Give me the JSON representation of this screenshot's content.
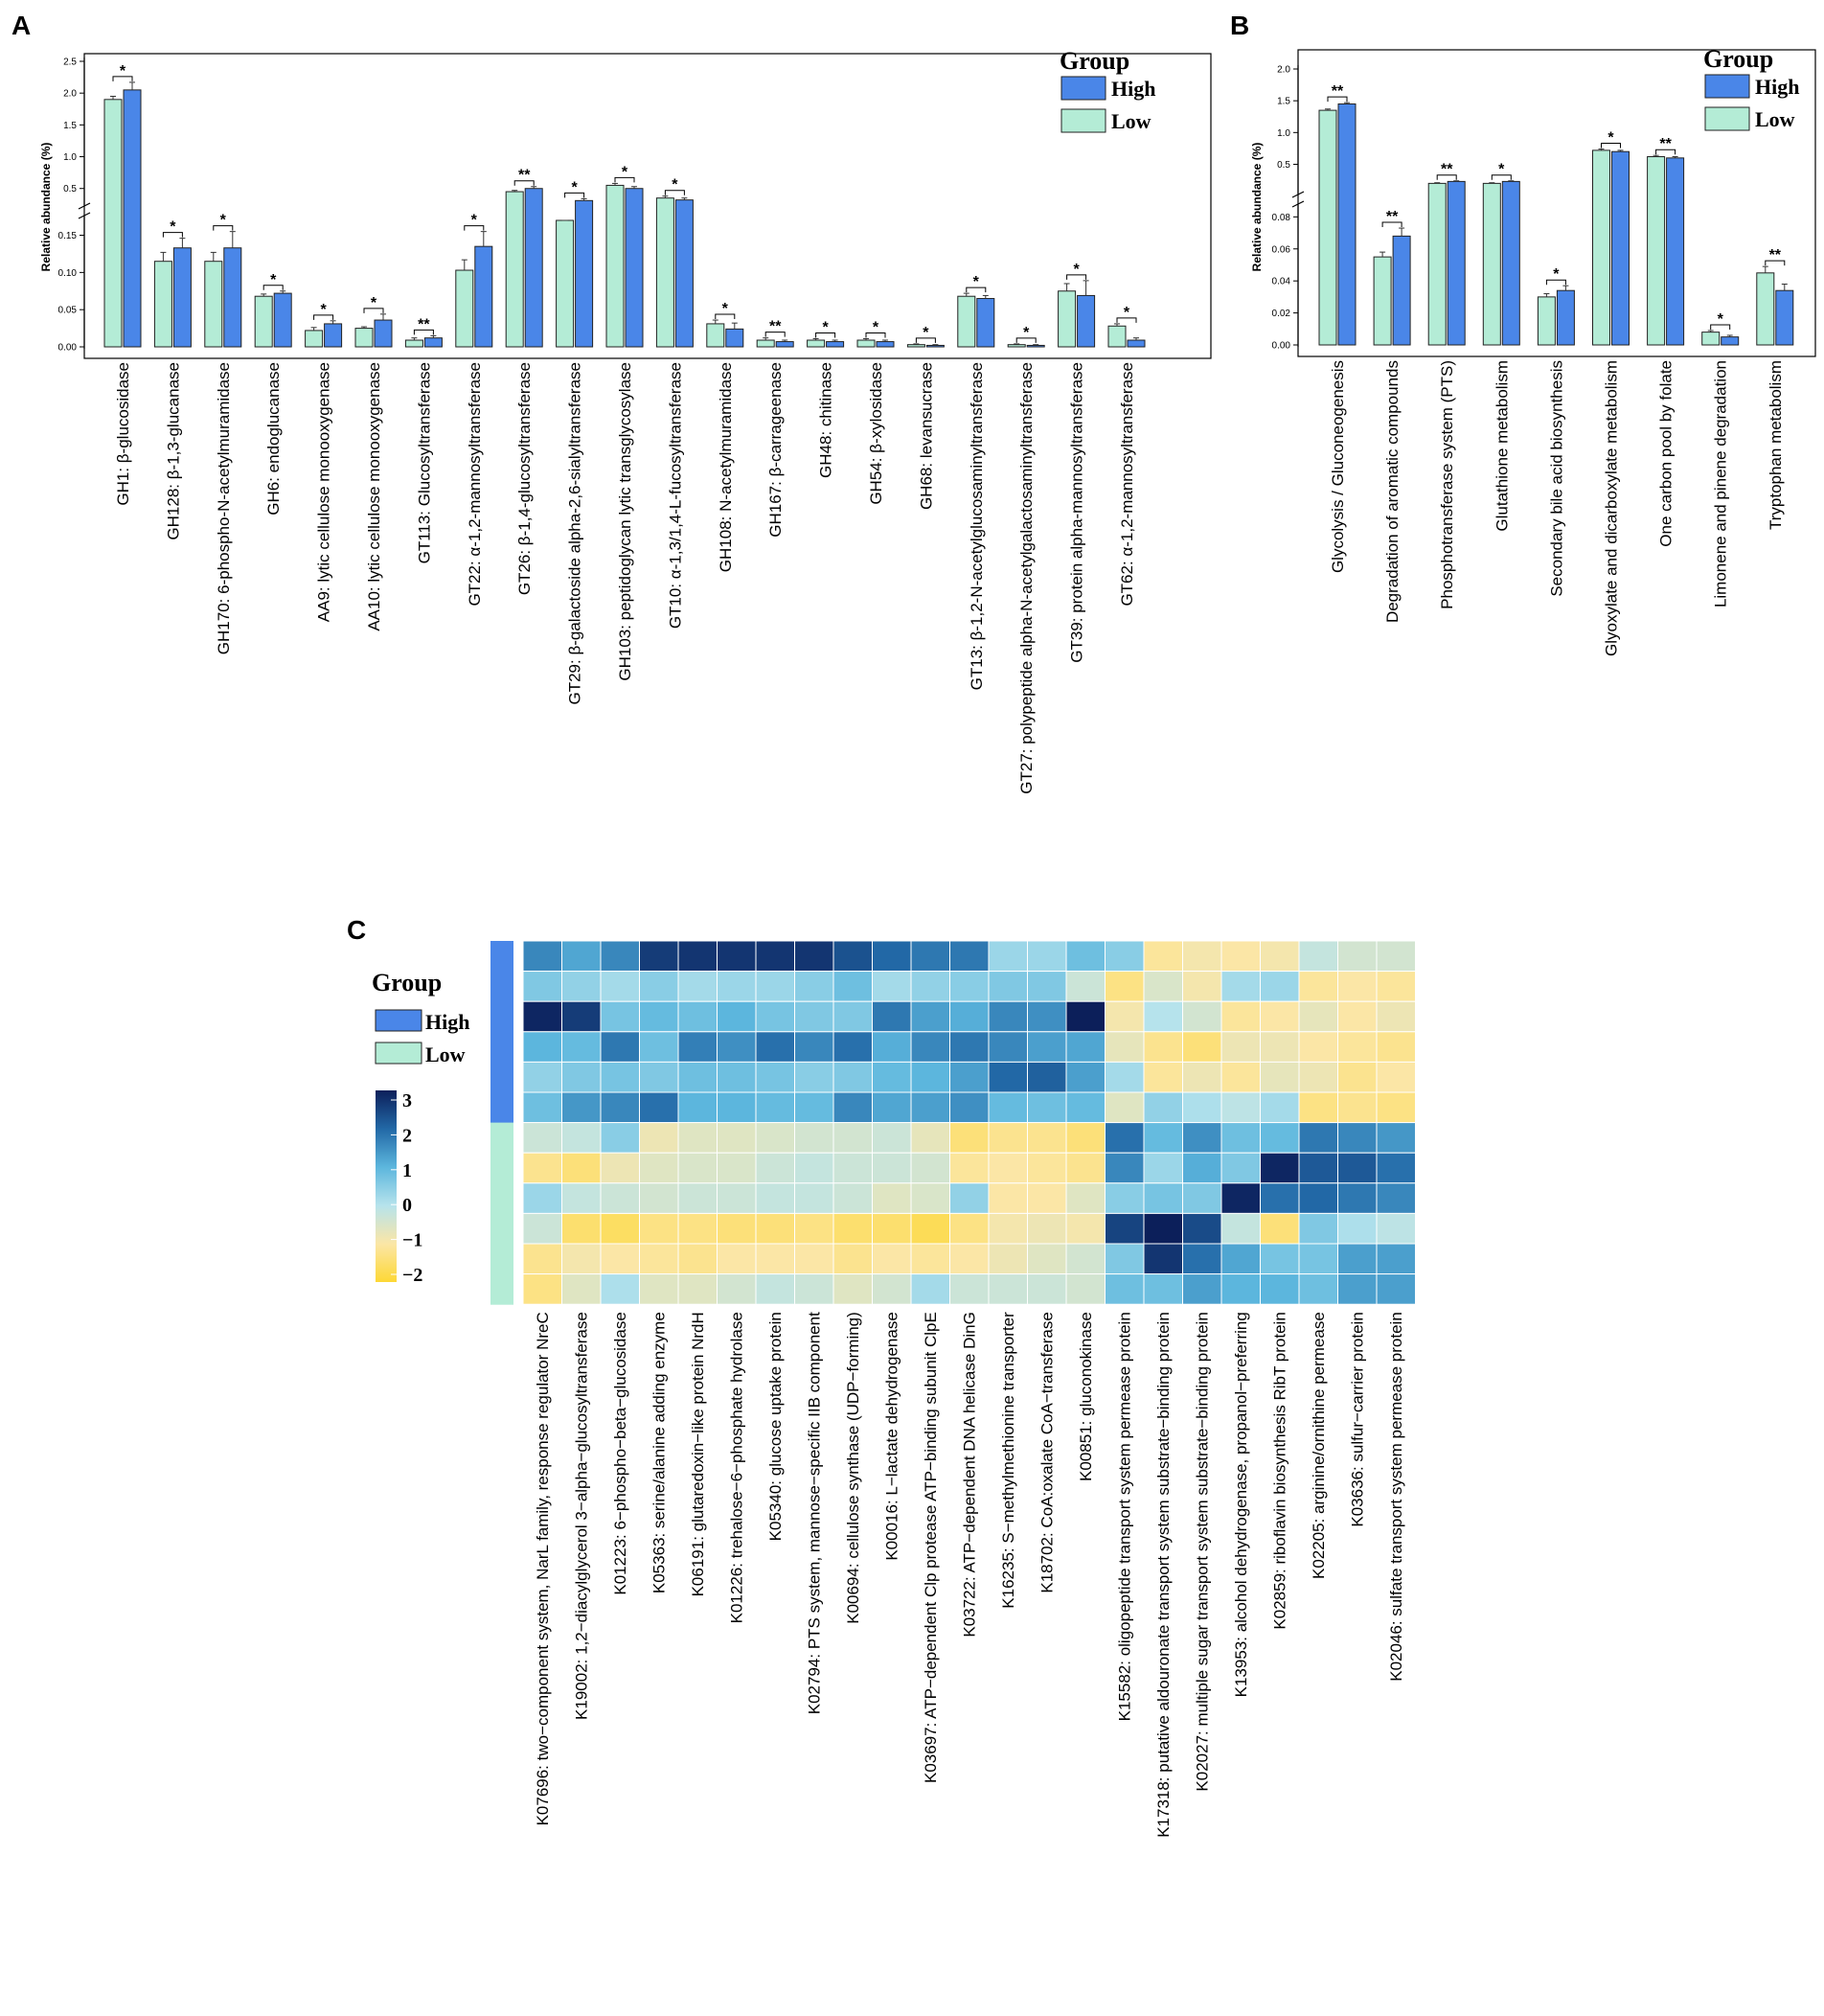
{
  "colors": {
    "high": "#4a86e8",
    "low": "#b4ecd6",
    "bar_stroke": "#222222"
  },
  "chart_data": [
    {
      "panel": "A",
      "type": "bar",
      "ylabel": "Relative abundance (%)",
      "legend": {
        "title": "Group",
        "items": [
          "High",
          "Low"
        ]
      },
      "yticks_upper": [
        "0.5",
        "1.0",
        "1.5",
        "2.0",
        "2.5"
      ],
      "yticks_lower": [
        "0.00",
        "0.05",
        "0.10",
        "0.15"
      ],
      "axis_break": [
        0.17,
        0.3
      ],
      "categories": [
        "GH1: β-glucosidase",
        "GH128: β-1,3-glucanase",
        "GH170: 6-phospho-N-acetylmuramidase",
        "GH6: endoglucanase",
        "AA9: lytic cellulose monooxygenase",
        "AA10: lytic cellulose monooxygenase",
        "GT113: Glucosyltransferase",
        "GT22: α-1,2-mannosyltransferase",
        "GT26: β-1,4-glucosyltransferase",
        "GT29: β-galactoside alpha-2,6-sialyltransferase",
        "GH103: peptidoglycan lytic transglycosylase",
        "GT10: α-1,3/1,4-L-fucosyltransferase",
        "GH108: N-acetylmuramidase",
        "GH167: β-carrageenase",
        "GH48: chitinase",
        "GH54: β-xylosidase",
        "GH68: levansucrase",
        "GT13: β-1,2-N-acetylglucosaminyltransferase",
        "GT27: polypeptide alpha-N-acetylgalactosaminyltransferase",
        "GT39: protein alpha-mannosyltransferase",
        "GT62: α-1,2-mannosyltransferase"
      ],
      "series": [
        {
          "name": "Low",
          "values": [
            1.9,
            0.115,
            0.115,
            0.068,
            0.022,
            0.025,
            0.009,
            0.103,
            0.45,
            0.27,
            0.55,
            0.35,
            0.031,
            0.009,
            0.009,
            0.009,
            0.003,
            0.068,
            0.003,
            0.075,
            0.028
          ],
          "errors": [
            0.05,
            0.012,
            0.012,
            0.003,
            0.004,
            0.002,
            0.003,
            0.014,
            0.02,
            0.02,
            0.03,
            0.03,
            0.005,
            0.003,
            0.002,
            0.002,
            0.001,
            0.004,
            0.001,
            0.01,
            0.003
          ]
        },
        {
          "name": "High",
          "values": [
            2.05,
            0.133,
            0.133,
            0.072,
            0.031,
            0.036,
            0.012,
            0.135,
            0.5,
            0.31,
            0.5,
            0.32,
            0.024,
            0.007,
            0.007,
            0.007,
            0.002,
            0.065,
            0.002,
            0.069,
            0.009
          ],
          "errors": [
            0.12,
            0.013,
            0.022,
            0.003,
            0.004,
            0.008,
            0.003,
            0.02,
            0.03,
            0.03,
            0.03,
            0.03,
            0.008,
            0.002,
            0.002,
            0.002,
            0.001,
            0.004,
            0.001,
            0.02,
            0.003
          ]
        }
      ],
      "significance": [
        "*",
        "*",
        "*",
        "*",
        "*",
        "*",
        "**",
        "*",
        "**",
        "*",
        "*",
        "*",
        "*",
        "**",
        "*",
        "*",
        "*",
        "*",
        "*",
        "*",
        "*"
      ]
    },
    {
      "panel": "B",
      "type": "bar",
      "ylabel": "Relative abundance (%)",
      "legend": {
        "title": "Group",
        "items": [
          "High",
          "Low"
        ]
      },
      "yticks_upper": [
        "0.5",
        "1.0",
        "1.5",
        "2.0"
      ],
      "yticks_lower": [
        "0.00",
        "0.02",
        "0.04",
        "0.06",
        "0.08"
      ],
      "axis_break": [
        0.085,
        0.1
      ],
      "categories": [
        "Glycolysis / Gluconeogenesis",
        "Degradation of aromatic compounds",
        "Phosphotransferase system (PTS)",
        "Glutathione metabolism",
        "Secondary bile acid biosynthesis",
        "Glyoxylate and dicarboxylate metabolism",
        "One carbon pool by folate",
        "Limonene and pinene degradation",
        "Tryptophan metabolism"
      ],
      "series": [
        {
          "name": "Low",
          "values": [
            1.35,
            0.055,
            0.2,
            0.2,
            0.03,
            0.72,
            0.62,
            0.008,
            0.045
          ],
          "errors": [
            0.02,
            0.003,
            0.01,
            0.01,
            0.002,
            0.02,
            0.02,
            0.001,
            0.004
          ]
        },
        {
          "name": "High",
          "values": [
            1.45,
            0.068,
            0.23,
            0.23,
            0.034,
            0.7,
            0.6,
            0.005,
            0.034
          ],
          "errors": [
            0.02,
            0.005,
            0.01,
            0.01,
            0.003,
            0.02,
            0.02,
            0.001,
            0.004
          ]
        }
      ],
      "significance": [
        "**",
        "**",
        "**",
        "*",
        "*",
        "*",
        "**",
        "*",
        "**"
      ]
    },
    {
      "panel": "C",
      "type": "heatmap",
      "legend": {
        "title": "Group",
        "items": [
          "High",
          "Low"
        ]
      },
      "colorbar_ticks": [
        "3",
        "2",
        "1",
        "0",
        "−1",
        "−2"
      ],
      "colorbar_range": [
        -2,
        3
      ],
      "row_groups": [
        "High",
        "High",
        "High",
        "High",
        "High",
        "High",
        "Low",
        "Low",
        "Low",
        "Low",
        "Low",
        "Low"
      ],
      "columns": [
        "K07696: two−component system, NarL family, response regulator NreC",
        "K19002: 1,2−diacylglycerol 3−alpha−glucosyltransferase",
        "K01223: 6−phospho−beta−glucosidase",
        "K05363: serine/alanine adding enzyme",
        "K06191: glutaredoxin−like protein NrdH",
        "K01226: trehalose−6−phosphate hydrolase",
        "K05340: glucose uptake protein",
        "K02794: PTS system, mannose−specific IIB component",
        "K00694: cellulose synthase (UDP−forming)",
        "K00016: L−lactate dehydrogenase",
        "K03697: ATP−dependent Clp protease ATP−binding subunit ClpE",
        "K03722: ATP−dependent DNA helicase DinG",
        "K16235: S−methylmethionine transporter",
        "K18702: CoA:oxalate CoA−transferase",
        "K00851: gluconokinase",
        "K15582:  oligopeptide transport system permease protein",
        "K17318: putative aldouronate transport system substrate−binding protein",
        "K02027: multiple sugar transport system substrate−binding protein",
        "K13953: alcohol dehydrogenase, propanol−preferring",
        "K02859: riboflavin biosynthesis RibT protein",
        "K02205: arginine/ornithine permease",
        "K03636: sulfur−carrier protein",
        "K02046: sulfate transport system permease protein"
      ],
      "values": [
        [
          1.6,
          1.2,
          1.6,
          2.6,
          2.7,
          2.7,
          2.7,
          2.7,
          2.3,
          2.0,
          1.8,
          1.8,
          0.3,
          0.3,
          0.8,
          0.5,
          -1.1,
          -0.9,
          -1.0,
          -0.9,
          -0.2,
          -0.4,
          -0.4
        ],
        [
          0.6,
          0.4,
          0.2,
          0.5,
          0.2,
          0.3,
          0.3,
          0.5,
          0.8,
          0.2,
          0.4,
          0.5,
          0.6,
          0.6,
          -0.3,
          -1.3,
          -0.5,
          -0.9,
          0.2,
          0.3,
          -1.1,
          -1.0,
          -1.1
        ],
        [
          2.9,
          2.6,
          0.7,
          0.9,
          0.8,
          1.0,
          0.7,
          0.6,
          0.6,
          1.8,
          1.3,
          1.1,
          1.6,
          1.5,
          3.0,
          -0.9,
          0.0,
          -0.4,
          -1.1,
          -1.0,
          -0.7,
          -1.0,
          -0.8
        ],
        [
          1.0,
          0.9,
          1.8,
          0.8,
          1.7,
          1.5,
          1.9,
          1.6,
          1.9,
          1.1,
          1.6,
          1.8,
          1.6,
          1.3,
          1.2,
          -0.7,
          -1.2,
          -1.4,
          -0.8,
          -0.8,
          -1.0,
          -1.1,
          -1.2
        ],
        [
          0.4,
          0.6,
          0.7,
          0.6,
          0.8,
          0.8,
          0.7,
          0.5,
          0.6,
          0.9,
          1.0,
          1.3,
          2.0,
          2.1,
          1.3,
          0.2,
          -1.1,
          -0.8,
          -1.1,
          -0.7,
          -0.8,
          -1.2,
          -1.0
        ],
        [
          0.8,
          1.4,
          1.6,
          1.9,
          1.0,
          1.0,
          0.9,
          0.9,
          1.6,
          1.2,
          1.3,
          1.5,
          0.9,
          0.8,
          0.9,
          -0.6,
          0.4,
          0.1,
          -0.1,
          0.2,
          -1.3,
          -1.2,
          -1.3
        ],
        [
          -0.3,
          -0.2,
          0.5,
          -0.8,
          -0.6,
          -0.6,
          -0.5,
          -0.4,
          -0.4,
          -0.3,
          -0.7,
          -1.4,
          -1.2,
          -1.2,
          -1.4,
          1.9,
          0.9,
          1.5,
          0.8,
          0.9,
          1.8,
          1.6,
          1.4
        ],
        [
          -1.2,
          -1.4,
          -0.8,
          -0.6,
          -0.5,
          -0.5,
          -0.3,
          -0.2,
          -0.3,
          -0.3,
          -0.4,
          -1.1,
          -1.0,
          -1.1,
          -1.2,
          1.6,
          0.3,
          1.1,
          0.6,
          2.9,
          2.2,
          2.2,
          1.9
        ],
        [
          0.3,
          -0.2,
          -0.3,
          -0.4,
          -0.3,
          -0.3,
          -0.2,
          -0.2,
          -0.3,
          -0.6,
          -0.5,
          0.4,
          -1.0,
          -1.0,
          -0.6,
          0.5,
          0.7,
          0.6,
          2.9,
          1.9,
          2.0,
          1.8,
          1.6
        ],
        [
          -0.3,
          -1.5,
          -1.6,
          -1.3,
          -1.3,
          -1.4,
          -1.4,
          -1.3,
          -1.5,
          -1.5,
          -1.7,
          -1.3,
          -0.9,
          -0.8,
          -0.9,
          2.5,
          3.0,
          2.4,
          -0.2,
          -1.4,
          0.6,
          0.1,
          -0.1
        ],
        [
          -1.2,
          -0.9,
          -1.0,
          -1.1,
          -1.2,
          -1.0,
          -1.0,
          -1.0,
          -1.2,
          -1.0,
          -1.1,
          -1.0,
          -0.8,
          -0.6,
          -0.4,
          0.6,
          2.7,
          1.9,
          1.2,
          0.7,
          0.7,
          1.3,
          1.3
        ],
        [
          -1.3,
          -0.6,
          0.1,
          -0.6,
          -0.6,
          -0.4,
          -0.2,
          -0.3,
          -0.6,
          -0.4,
          0.2,
          -0.3,
          -0.3,
          -0.3,
          -0.4,
          0.8,
          0.8,
          1.3,
          1.0,
          1.0,
          0.8,
          1.3,
          1.3
        ]
      ]
    }
  ]
}
